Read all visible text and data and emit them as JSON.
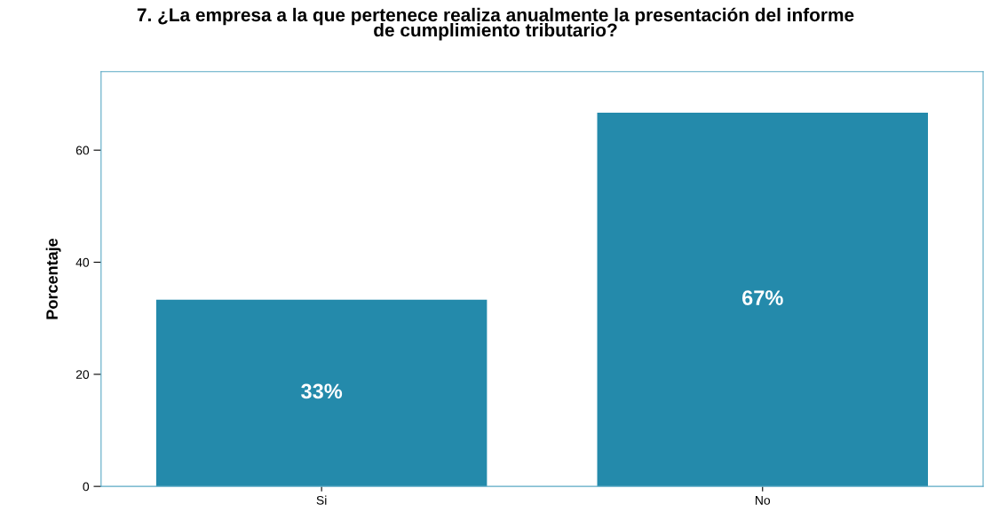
{
  "chart_data": {
    "type": "bar",
    "title": "7. ¿La empresa a la que pertenece realiza anualmente la presentación del informe\nde cumplimiento tributario?",
    "ylabel": "Porcentaje",
    "categories": [
      "Si",
      "No"
    ],
    "values": [
      33.33,
      66.67
    ],
    "value_labels": [
      "33%",
      "67%"
    ],
    "color": "#248aab",
    "ylim": [
      0,
      74
    ],
    "yticks": [
      0,
      20,
      40,
      60
    ],
    "grid": false
  }
}
